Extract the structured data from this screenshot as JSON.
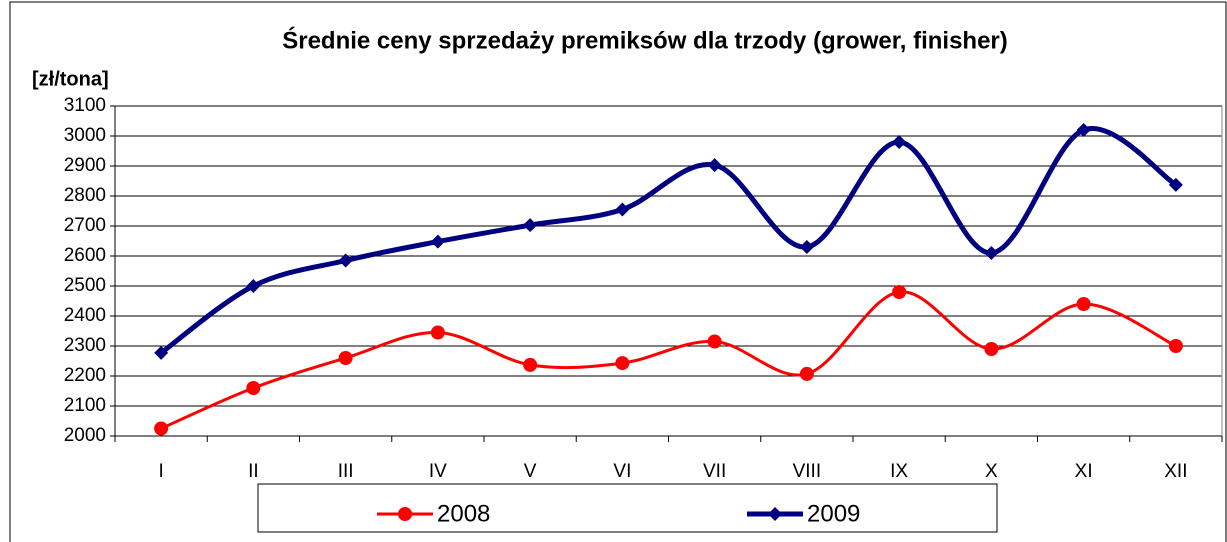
{
  "chart_data": {
    "type": "line",
    "title": "Średnie ceny sprzedaży premiksów dla trzody (grower, finisher)",
    "y_label": "[zł/tona]",
    "categories": [
      "I",
      "II",
      "III",
      "IV",
      "V",
      "VI",
      "VII",
      "VIII",
      "IX",
      "X",
      "XI",
      "XII"
    ],
    "series": [
      {
        "name": "2008",
        "color": "#ff0000",
        "marker": "circle",
        "values": [
          2025,
          2160,
          2260,
          2345,
          2237,
          2243,
          2315,
          2207,
          2480,
          2290,
          2440,
          2300
        ]
      },
      {
        "name": "2009",
        "color": "#000080",
        "marker": "diamond",
        "values": [
          2277,
          2500,
          2585,
          2648,
          2703,
          2755,
          2903,
          2630,
          2980,
          2610,
          3020,
          2837
        ]
      }
    ],
    "ylim": [
      2000,
      3100
    ],
    "yticks": [
      2000,
      2100,
      2200,
      2300,
      2400,
      2500,
      2600,
      2700,
      2800,
      2900,
      3000,
      3100
    ],
    "grid": true,
    "smooth": true,
    "legend": "bottom"
  }
}
